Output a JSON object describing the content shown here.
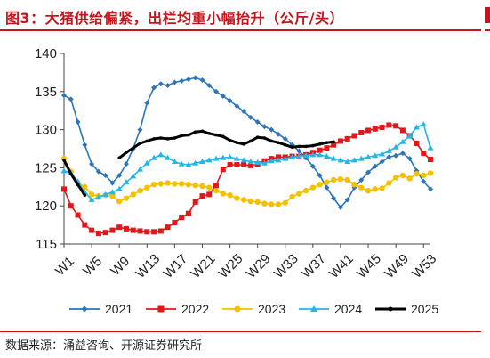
{
  "header": {
    "title": "图3：大猪供给偏紧，出栏均重小幅抬升（公斤/头）"
  },
  "footer": {
    "source": "数据来源：涌益咨询、开源证券研究所"
  },
  "colors": {
    "accent": "#c4161c",
    "s2021": "#2e75b6",
    "s2022": "#e3161a",
    "s2023": "#f5c000",
    "s2024": "#22b7ea",
    "s2025": "#000000"
  },
  "chart_data": {
    "type": "line",
    "title": "",
    "xlabel": "",
    "ylabel": "",
    "ylim": [
      115,
      140
    ],
    "yticks": [
      115,
      120,
      125,
      130,
      135,
      140
    ],
    "xticks": [
      "W1",
      "W5",
      "W9",
      "W13",
      "W17",
      "W21",
      "W25",
      "W29",
      "W33",
      "W37",
      "W41",
      "W45",
      "W49",
      "W53"
    ],
    "xtick_weeks": [
      1,
      5,
      9,
      13,
      17,
      21,
      25,
      29,
      33,
      37,
      41,
      45,
      49,
      53
    ],
    "grid": false,
    "legend_position": "bottom",
    "series": [
      {
        "name": "2021",
        "start_week": 1,
        "values": [
          134.5,
          134.0,
          131.0,
          128.0,
          125.5,
          124.5,
          124.0,
          123.0,
          124.0,
          125.5,
          127.5,
          130.0,
          133.5,
          135.5,
          136.0,
          135.8,
          136.2,
          136.4,
          136.6,
          136.8,
          136.5,
          135.8,
          135.0,
          134.4,
          133.8,
          133.1,
          132.4,
          131.6,
          131.0,
          130.4,
          130.0,
          129.4,
          128.8,
          128.0,
          127.2,
          126.3,
          125.2,
          124.0,
          122.4,
          121.0,
          119.8,
          120.8,
          122.4,
          123.4,
          124.4,
          125.2,
          125.8,
          126.4,
          126.6,
          126.9,
          126.2,
          124.6,
          123.2,
          122.2
        ]
      },
      {
        "name": "2022",
        "start_week": 1,
        "values": [
          122.2,
          120.0,
          118.8,
          117.5,
          116.8,
          116.4,
          116.5,
          116.8,
          117.2,
          117.0,
          116.8,
          116.7,
          116.6,
          116.6,
          116.7,
          117.2,
          117.8,
          118.5,
          119.0,
          120.5,
          121.3,
          121.5,
          122.7,
          124.8,
          125.4,
          125.4,
          125.4,
          125.3,
          125.5,
          125.9,
          126.2,
          126.4,
          126.4,
          126.5,
          126.5,
          126.7,
          127.0,
          127.3,
          127.6,
          128.0,
          128.5,
          128.8,
          129.2,
          129.6,
          129.9,
          130.1,
          130.3,
          130.6,
          130.5,
          129.9,
          129.2,
          128.2,
          126.9,
          126.1
        ]
      },
      {
        "name": "2023",
        "start_week": 1,
        "values": [
          126.2,
          124.5,
          123.0,
          122.5,
          121.5,
          121.3,
          121.4,
          121.3,
          120.6,
          121.0,
          121.5,
          122.0,
          122.4,
          122.8,
          122.9,
          123.0,
          122.9,
          122.9,
          122.8,
          122.7,
          122.6,
          122.4,
          122.0,
          121.6,
          121.4,
          121.0,
          120.8,
          120.6,
          120.5,
          120.3,
          120.2,
          120.2,
          120.4,
          121.2,
          121.6,
          122.0,
          122.4,
          122.8,
          123.1,
          123.4,
          123.5,
          123.4,
          122.8,
          122.4,
          122.0,
          122.2,
          122.3,
          123.0,
          123.7,
          124.0,
          123.6,
          124.2,
          124.0,
          124.3
        ]
      },
      {
        "name": "2024",
        "start_week": 1,
        "values": [
          124.6,
          124.3,
          123.2,
          121.8,
          120.8,
          121.1,
          121.5,
          121.8,
          122.2,
          123.1,
          123.9,
          124.8,
          125.6,
          126.3,
          126.7,
          126.3,
          125.8,
          125.5,
          125.4,
          125.6,
          125.8,
          126.0,
          126.2,
          126.3,
          126.4,
          126.2,
          126.0,
          125.8,
          125.7,
          125.6,
          125.9,
          126.0,
          126.2,
          126.4,
          126.5,
          126.6,
          126.7,
          126.7,
          126.5,
          126.2,
          126.0,
          125.8,
          126.0,
          126.2,
          126.4,
          126.6,
          126.8,
          127.2,
          127.7,
          128.4,
          129.2,
          130.3,
          130.7,
          127.6
        ]
      },
      {
        "name": "2025",
        "start_week": 1,
        "values": [
          126.0,
          124.2,
          122.8,
          121.4,
          null,
          null,
          null,
          null,
          126.3,
          127.0,
          127.6,
          128.2,
          128.5,
          128.8,
          128.9,
          128.8,
          128.9,
          129.2,
          129.3,
          129.7,
          129.8,
          129.5,
          129.3,
          129.1,
          128.6,
          128.3,
          128.1,
          128.5,
          129.0,
          128.9,
          128.5,
          128.3,
          128.0,
          127.7,
          127.8,
          127.8,
          127.9,
          128.1,
          128.3,
          128.4
        ]
      }
    ]
  }
}
